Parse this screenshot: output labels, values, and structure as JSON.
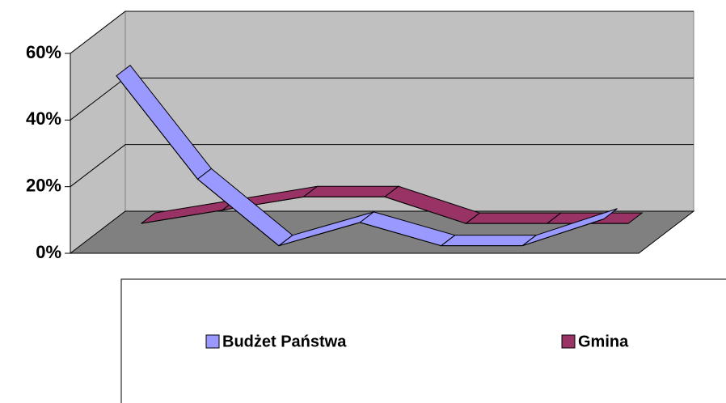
{
  "chart_data": {
    "type": "line",
    "categories": [
      null,
      null,
      null,
      null,
      null,
      null,
      null
    ],
    "series": [
      {
        "name": "Budżet Państwa",
        "color": "#9999ff",
        "values": [
          52,
          21,
          1,
          8,
          1,
          1,
          9
        ]
      },
      {
        "name": "Gmina",
        "color": "#993366",
        "values": [
          2,
          6,
          10,
          10,
          2,
          2,
          2
        ]
      }
    ],
    "ylim": [
      0,
      60
    ],
    "yticks": [
      {
        "value": 0,
        "label": "0%"
      },
      {
        "value": 20,
        "label": "20%"
      },
      {
        "value": 40,
        "label": "40%"
      },
      {
        "value": 60,
        "label": "60%"
      }
    ],
    "grid": true
  }
}
